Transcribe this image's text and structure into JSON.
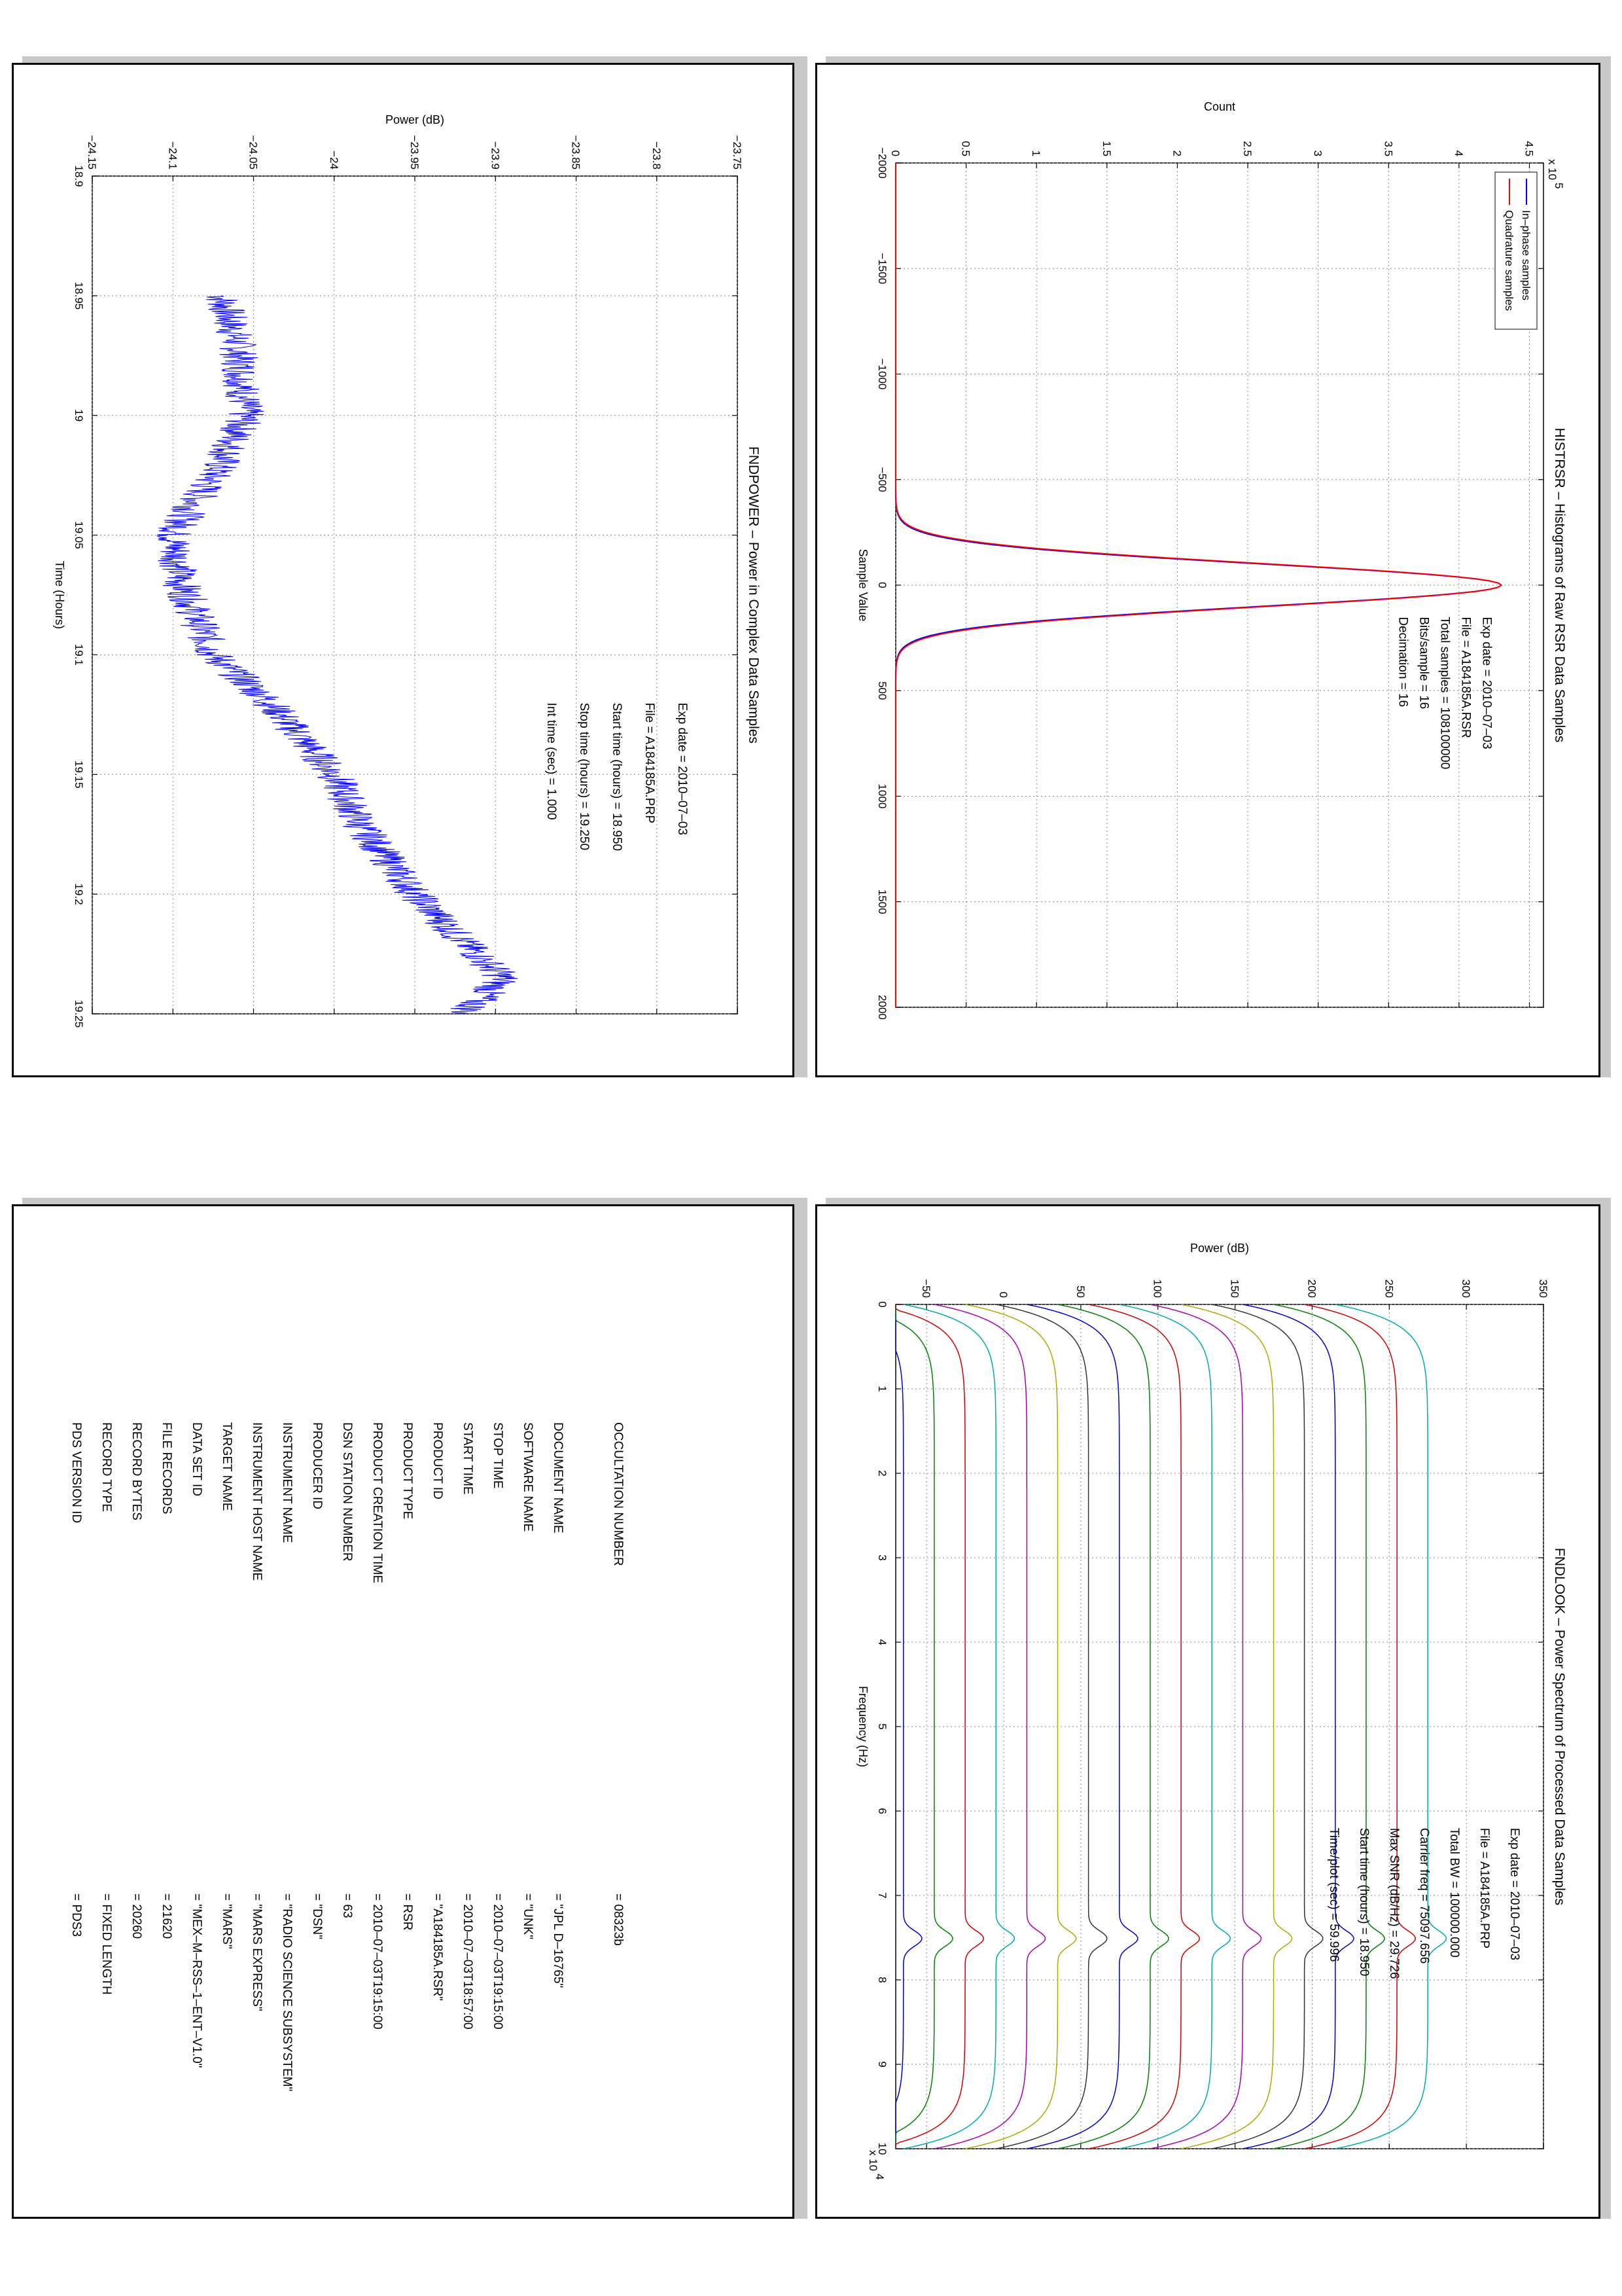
{
  "charts": [
    {
      "id": "histrsr",
      "chart_data": {
        "type": "line",
        "title": "HISTRSR – Histograms of Raw RSR Data Samples",
        "xlabel": "Sample Value",
        "ylabel": "Count",
        "xlim": [
          -2000,
          2000
        ],
        "ylim": [
          0,
          4.6
        ],
        "y_multiplier": "x 10^5",
        "xticks": [
          -2000,
          -1500,
          -1000,
          -500,
          0,
          500,
          1000,
          1500,
          2000
        ],
        "xtick_labels": [
          "−2000",
          "−1500",
          "−1000",
          "−500",
          "0",
          "500",
          "1000",
          "1500",
          "2000"
        ],
        "yticks": [
          0,
          0.5,
          1,
          1.5,
          2,
          2.5,
          3,
          3.5,
          4,
          4.5
        ],
        "ytick_labels": [
          "0",
          "0.5",
          "1",
          "1.5",
          "2",
          "2.5",
          "3",
          "3.5",
          "4",
          "4.5"
        ],
        "grid": true,
        "legend_position": "top-left",
        "series": [
          {
            "name": "In–phase samples",
            "color": "#0000ff",
            "peak": 4.3,
            "sigma": 100,
            "center": 0
          },
          {
            "name": "Quadrature samples",
            "color": "#ff0000",
            "peak": 4.3,
            "sigma": 100,
            "center": 0
          }
        ],
        "annotations": [
          {
            "label": "Exp date = 2010–07–03",
            "x": 150,
            "y": 4.0
          },
          {
            "label": "File = A184185A.RSR",
            "x": 150,
            "y": 3.85
          },
          {
            "label": "Total samples =  108100000",
            "x": 150,
            "y": 3.7
          },
          {
            "label": "Bits/sample   =          16",
            "x": 150,
            "y": 3.55
          },
          {
            "label": "Decimation    =          16",
            "x": 150,
            "y": 3.4
          }
        ]
      }
    },
    {
      "id": "fndpower",
      "chart_data": {
        "type": "line",
        "title": "FNDPOWER – Power in Complex Data Samples",
        "xlabel": "Time (Hours)",
        "ylabel": "Power (dB)",
        "xlim": [
          18.9,
          19.25
        ],
        "ylim": [
          -24.15,
          -23.75
        ],
        "xticks": [
          18.9,
          18.95,
          19,
          19.05,
          19.1,
          19.15,
          19.2,
          19.25
        ],
        "xtick_labels": [
          "18.9",
          "18.95",
          "19",
          "19.05",
          "19.1",
          "19.15",
          "19.2",
          "19.25"
        ],
        "yticks": [
          -24.15,
          -24.1,
          -24.05,
          -24,
          -23.95,
          -23.9,
          -23.85,
          -23.8,
          -23.75
        ],
        "ytick_labels": [
          "−24.15",
          "−24.1",
          "−24.05",
          "−24",
          "−23.95",
          "−23.9",
          "−23.85",
          "−23.8",
          "−23.75"
        ],
        "grid": true,
        "series": [
          {
            "name": "",
            "color": "#0000ff",
            "trend_x": [
              18.95,
              18.97,
              19.0,
              19.02,
              19.05,
              19.07,
              19.1,
              19.12,
              19.15,
              19.17,
              19.2,
              19.22,
              19.235,
              19.25
            ],
            "trend_y": [
              -24.07,
              -24.06,
              -24.055,
              -24.07,
              -24.1,
              -24.095,
              -24.075,
              -24.04,
              -24.0,
              -23.985,
              -23.95,
              -23.92,
              -23.895,
              -23.92
            ],
            "noise_amplitude": 0.012
          }
        ],
        "annotations": [
          {
            "label": "Exp date = 2010–07–03"
          },
          {
            "label": "File = A184185A.PRP"
          },
          {
            "label": "Start time (hours) = 18.950"
          },
          {
            "label": "Stop time (hours)  = 19.250"
          },
          {
            "label": "Int time (sec)  =    1.000"
          }
        ]
      }
    },
    {
      "id": "fndlook",
      "chart_data": {
        "type": "line",
        "title": "FNDLOOK – Power Spectrum of Processed Data Samples",
        "xlabel": "Frequency (Hz)",
        "ylabel": "Power (dB)",
        "xlim": [
          0,
          100000
        ],
        "x_multiplier": "x 10^4",
        "ylim": [
          -70,
          350
        ],
        "xticks": [
          0,
          10000,
          20000,
          30000,
          40000,
          50000,
          60000,
          70000,
          80000,
          90000,
          100000
        ],
        "xtick_labels": [
          "0",
          "1",
          "2",
          "3",
          "4",
          "5",
          "6",
          "7",
          "8",
          "9",
          "10"
        ],
        "yticks": [
          -50,
          0,
          50,
          100,
          150,
          200,
          250,
          300,
          350
        ],
        "ytick_labels": [
          "−50",
          "0",
          "50",
          "100",
          "150",
          "200",
          "250",
          "300",
          "350"
        ],
        "grid": true,
        "carrier_freq": 75097.656,
        "series": [
          {
            "name": "",
            "color": "#0000cc",
            "offset": -65,
            "peak": 12
          },
          {
            "name": "",
            "color": "#008000",
            "offset": -45,
            "peak": 12
          },
          {
            "name": "",
            "color": "#cc0000",
            "offset": -25,
            "peak": 12
          },
          {
            "name": "",
            "color": "#00aaaa",
            "offset": -5,
            "peak": 12
          },
          {
            "name": "",
            "color": "#aa00aa",
            "offset": 15,
            "peak": 12
          },
          {
            "name": "",
            "color": "#aaaa00",
            "offset": 35,
            "peak": 12
          },
          {
            "name": "",
            "color": "#333333",
            "offset": 55,
            "peak": 12
          },
          {
            "name": "",
            "color": "#0000cc",
            "offset": 75,
            "peak": 12
          },
          {
            "name": "",
            "color": "#008000",
            "offset": 95,
            "peak": 12
          },
          {
            "name": "",
            "color": "#cc0000",
            "offset": 115,
            "peak": 12
          },
          {
            "name": "",
            "color": "#00aaaa",
            "offset": 135,
            "peak": 12
          },
          {
            "name": "",
            "color": "#aa00aa",
            "offset": 155,
            "peak": 12
          },
          {
            "name": "",
            "color": "#aaaa00",
            "offset": 175,
            "peak": 12
          },
          {
            "name": "",
            "color": "#333333",
            "offset": 195,
            "peak": 12
          },
          {
            "name": "",
            "color": "#0000cc",
            "offset": 215,
            "peak": 12
          },
          {
            "name": "",
            "color": "#008000",
            "offset": 235,
            "peak": 12
          },
          {
            "name": "",
            "color": "#cc0000",
            "offset": 255,
            "peak": 12
          },
          {
            "name": "",
            "color": "#00aaaa",
            "offset": 275,
            "peak": 12
          }
        ],
        "annotations": [
          {
            "label": "Exp date = 2010–07–03"
          },
          {
            "label": "File = A184185A.PRP"
          },
          {
            "label": "Total BW =    100000.000"
          },
          {
            "label": "Carrier freq =  75097.656"
          },
          {
            "label": "Max SNR (dB/Hz) =     29.726"
          },
          {
            "label": "Start time (hours) =    18.950"
          },
          {
            "label": "Time/plot (sec) =     59.996"
          }
        ]
      }
    }
  ],
  "label_table": [
    {
      "key": "PDS VERSION ID",
      "value": "= PDS3"
    },
    {
      "key": "RECORD TYPE",
      "value": "= FIXED LENGTH"
    },
    {
      "key": "RECORD BYTES",
      "value": "= 20260"
    },
    {
      "key": "FILE RECORDS",
      "value": "= 21620"
    },
    {
      "key": "DATA SET ID",
      "value": "= \"MEX–M–RSS–1–ENT–V1.0\""
    },
    {
      "key": "TARGET NAME",
      "value": "= \"MARS\""
    },
    {
      "key": "INSTRUMENT HOST NAME",
      "value": "= \"MARS EXPRESS\""
    },
    {
      "key": "INSTRUMENT NAME",
      "value": "= \"RADIO SCIENCE SUBSYSTEM\""
    },
    {
      "key": "PRODUCER ID",
      "value": "= \"DSN\""
    },
    {
      "key": "DSN STATION NUMBER",
      "value": "= 63"
    },
    {
      "key": "PRODUCT CREATION TIME",
      "value": "= 2010–07–03T19:15:00"
    },
    {
      "key": "PRODUCT TYPE",
      "value": "= RSR"
    },
    {
      "key": "PRODUCT ID",
      "value": "= \"A184185A.RSR\""
    },
    {
      "key": "START TIME",
      "value": "= 2010–07–03T18:57:00"
    },
    {
      "key": "STOP TIME",
      "value": "= 2010–07–03T19:15:00"
    },
    {
      "key": "SOFTWARE NAME",
      "value": "= \"UNK\""
    },
    {
      "key": "DOCUMENT NAME",
      "value": "= \"JPL D–16765\""
    },
    {
      "key": "",
      "value": ""
    },
    {
      "key": "OCCULTATION NUMBER",
      "value": "= 08323b"
    }
  ],
  "colors": {
    "panel_border": "#000000",
    "panel_shadow": "#c8c8c8",
    "grid": "#888888"
  }
}
